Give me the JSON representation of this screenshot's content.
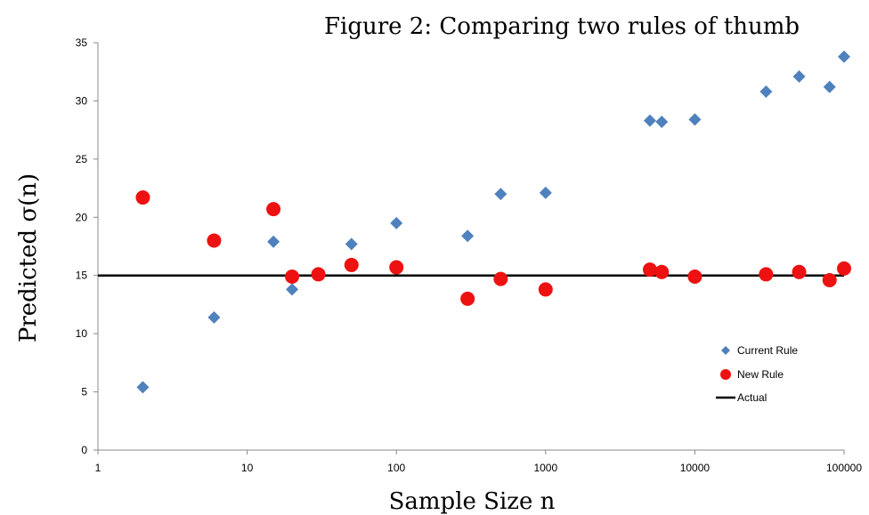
{
  "chart_data": {
    "type": "scatter",
    "title": "Figure 2: Comparing two rules of thumb",
    "xlabel": "Sample Size n",
    "ylabel": "Predicted σ(n)",
    "x_scale": "log",
    "xlim": [
      1,
      100000
    ],
    "ylim": [
      0,
      35
    ],
    "x_ticks": [
      1,
      10,
      100,
      1000,
      10000,
      100000
    ],
    "x_tick_labels": [
      "1",
      "10",
      "100",
      "1000",
      "10000",
      "100000"
    ],
    "y_ticks": [
      0,
      5,
      10,
      15,
      20,
      25,
      30,
      35
    ],
    "grid": false,
    "legend_position": "right",
    "series": [
      {
        "name": "Current Rule",
        "marker": "diamond",
        "color": "#4F81BD",
        "x": [
          2,
          6,
          15,
          20,
          30,
          50,
          100,
          300,
          500,
          1000,
          5000,
          6000,
          10000,
          30000,
          50000,
          80000,
          100000
        ],
        "y": [
          5.4,
          11.4,
          17.9,
          13.8,
          15.2,
          17.7,
          19.5,
          18.4,
          22.0,
          22.1,
          28.3,
          28.2,
          28.4,
          30.8,
          32.1,
          31.2,
          33.8
        ]
      },
      {
        "name": "New Rule",
        "marker": "circle",
        "color": "#EE1111",
        "x": [
          2,
          6,
          15,
          20,
          30,
          50,
          100,
          300,
          500,
          1000,
          5000,
          6000,
          10000,
          30000,
          50000,
          80000,
          100000
        ],
        "y": [
          21.7,
          18.0,
          20.7,
          14.9,
          15.1,
          15.9,
          15.7,
          13.0,
          14.7,
          13.8,
          15.5,
          15.3,
          14.9,
          15.1,
          15.3,
          14.6,
          15.6
        ]
      },
      {
        "name": "Actual",
        "type": "line",
        "color": "#000000",
        "y": 15
      }
    ]
  }
}
